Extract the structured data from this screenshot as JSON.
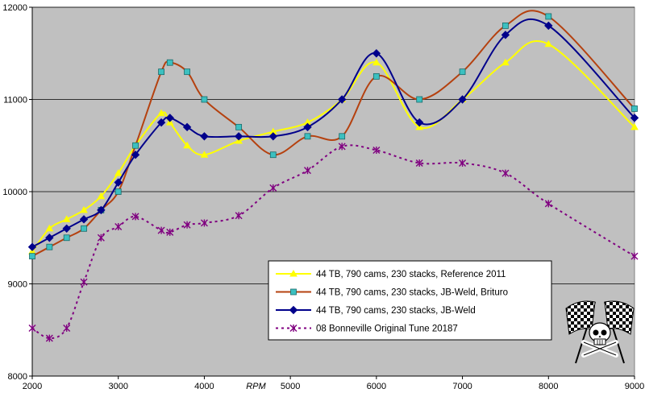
{
  "chart_data": {
    "type": "line",
    "title": "",
    "xlabel": "RPM",
    "ylabel": "",
    "xlim": [
      2000,
      9000
    ],
    "ylim": [
      8000,
      12000
    ],
    "x_ticks": [
      2000,
      3000,
      4000,
      5000,
      6000,
      7000,
      8000,
      9000
    ],
    "y_ticks": [
      8000,
      9000,
      10000,
      11000,
      12000
    ],
    "x_tick_labels": [
      "2000",
      "3000",
      "4000",
      "5000",
      "6000",
      "7000",
      "8000",
      "9000"
    ],
    "y_tick_labels": [
      "8000",
      "9000",
      "10000",
      "11000",
      "12000"
    ],
    "grid": true,
    "legend_position": "bottom-right",
    "series": [
      {
        "name": "44 TB, 790 cams, 230 stacks, Reference 2011",
        "color": "#ffff00",
        "marker": "triangle",
        "x": [
          2000,
          2200,
          2400,
          2600,
          2800,
          3000,
          3200,
          3500,
          3600,
          3800,
          4000,
          4400,
          4800,
          5200,
          5600,
          6000,
          6500,
          7000,
          7500,
          8000,
          9000
        ],
        "y": [
          9350,
          9600,
          9700,
          9800,
          9950,
          10200,
          10500,
          10850,
          10750,
          10500,
          10400,
          10550,
          10650,
          10750,
          11000,
          11400,
          10700,
          11000,
          11400,
          11600,
          10700
        ]
      },
      {
        "name": "44 TB, 790 cams, 230 stacks, JB-Weld, Brituro",
        "color": "#b5410f",
        "marker": "square",
        "x": [
          2000,
          2200,
          2400,
          2600,
          2800,
          3000,
          3200,
          3500,
          3600,
          3800,
          4000,
          4400,
          4800,
          5200,
          5600,
          6000,
          6500,
          7000,
          7500,
          8000,
          9000
        ],
        "y": [
          9300,
          9400,
          9500,
          9600,
          9800,
          10000,
          10500,
          11300,
          11400,
          11300,
          11000,
          10700,
          10400,
          10600,
          10600,
          11250,
          11000,
          11300,
          11800,
          11900,
          10900
        ]
      },
      {
        "name": "44 TB, 790 cams, 230 stacks, JB-Weld",
        "color": "#00008b",
        "marker": "diamond",
        "x": [
          2000,
          2200,
          2400,
          2600,
          2800,
          3000,
          3200,
          3500,
          3600,
          3800,
          4000,
          4400,
          4800,
          5200,
          5600,
          6000,
          6500,
          7000,
          7500,
          8000,
          9000
        ],
        "y": [
          9400,
          9500,
          9600,
          9700,
          9800,
          10100,
          10400,
          10750,
          10800,
          10700,
          10600,
          10600,
          10600,
          10700,
          11000,
          11500,
          10750,
          11000,
          11700,
          11800,
          10800
        ]
      },
      {
        "name": "08 Bonneville Original Tune 20187",
        "color": "#800080",
        "marker": "star",
        "dashed": true,
        "x": [
          2000,
          2200,
          2400,
          2600,
          2800,
          3000,
          3200,
          3500,
          3600,
          3800,
          4000,
          4400,
          4800,
          5200,
          5600,
          6000,
          6500,
          7000,
          7500,
          8000,
          9000
        ],
        "y": [
          8520,
          8410,
          8520,
          9020,
          9500,
          9620,
          9730,
          9580,
          9560,
          9640,
          9660,
          9740,
          10040,
          10230,
          10490,
          10450,
          10310,
          10310,
          10200,
          9870,
          9300
        ]
      }
    ]
  }
}
